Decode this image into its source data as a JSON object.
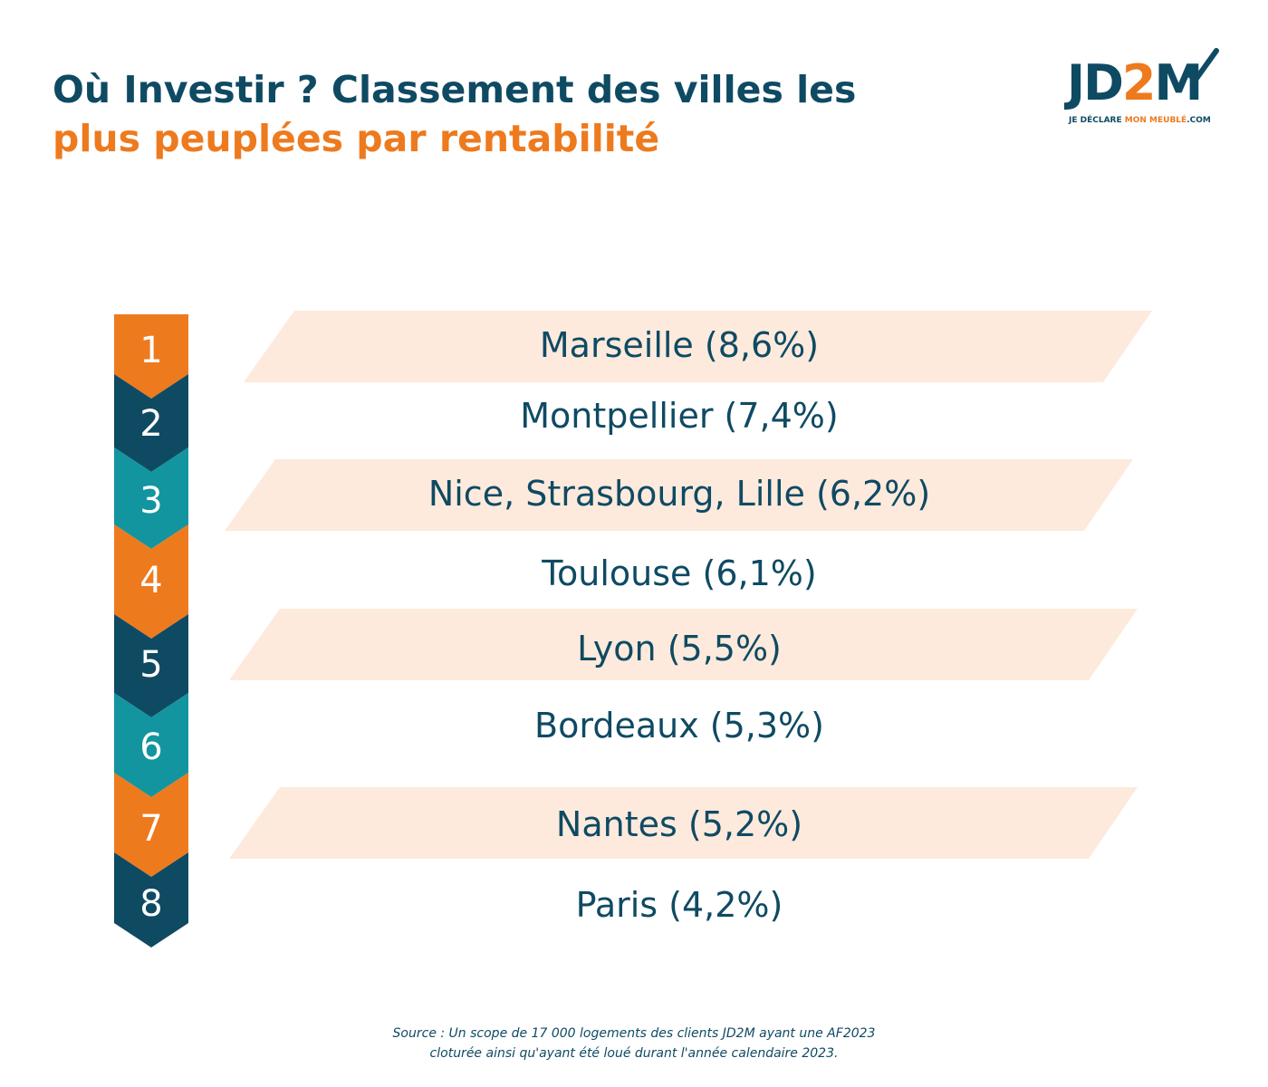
{
  "title": {
    "line1": "Où Investir ? Classement des villes les",
    "line2": "plus peuplées par rentabilité"
  },
  "logo": {
    "mark_jd": "JD",
    "mark_2": "2",
    "mark_m": "M",
    "tagline_a": "JE DÉCLARE ",
    "tagline_b": "MON MEUBLÉ",
    "tagline_c": ".COM",
    "colors": {
      "navy": "#0f4a63",
      "orange": "#ee7a1e"
    }
  },
  "ranking": [
    {
      "rank": "1",
      "label": "Marseille (8,6%)",
      "color": "#ee7a1e",
      "highlighted": true
    },
    {
      "rank": "2",
      "label": "Montpellier (7,4%)",
      "color": "#0f4a63",
      "highlighted": false
    },
    {
      "rank": "3",
      "label": "Nice, Strasbourg, Lille (6,2%)",
      "color": "#12959f",
      "highlighted": true
    },
    {
      "rank": "4",
      "label": "Toulouse (6,1%)",
      "color": "#ee7a1e",
      "highlighted": false
    },
    {
      "rank": "5",
      "label": "Lyon (5,5%)",
      "color": "#0f4a63",
      "highlighted": true
    },
    {
      "rank": "6",
      "label": "Bordeaux (5,3%)",
      "color": "#12959f",
      "highlighted": false
    },
    {
      "rank": "7",
      "label": "Nantes (5,2%)",
      "color": "#ee7a1e",
      "highlighted": true
    },
    {
      "rank": "8",
      "label": "Paris (4,2%)",
      "color": "#0f4a63",
      "highlighted": false
    }
  ],
  "source": {
    "line1": "Source : Un scope de 17 000 logements des clients JD2M ayant une AF2023",
    "line2": "cloturée ainsi qu'ayant été loué durant l'année calendaire 2023."
  }
}
